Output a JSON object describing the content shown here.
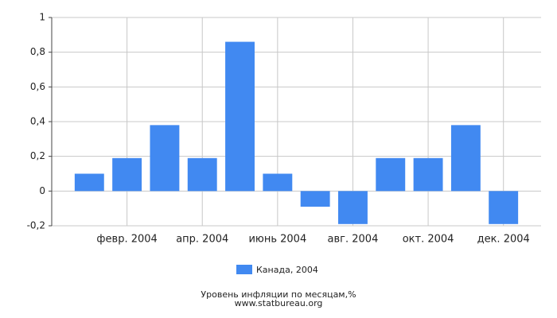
{
  "chart_data": {
    "type": "bar",
    "title": "Уровень инфляции по месяцам,%",
    "source": "www.statbureau.org",
    "categories": [
      null,
      "февр. 2004",
      null,
      "апр. 2004",
      null,
      "июнь 2004",
      null,
      "авг. 2004",
      null,
      "окт. 2004",
      null,
      "дек. 2004"
    ],
    "series": [
      {
        "name": "Канада, 2004",
        "color": "#4189f1",
        "values": [
          0.1,
          0.19,
          0.38,
          0.19,
          0.86,
          0.1,
          -0.09,
          -0.19,
          0.19,
          0.19,
          0.38,
          -0.19
        ]
      }
    ],
    "ylim": [
      -0.2,
      1
    ],
    "yticks": [
      {
        "value": -0.2,
        "label": "-0,2"
      },
      0,
      {
        "value": 0.2,
        "label": "0,2"
      },
      {
        "value": 0.4,
        "label": "0,4"
      },
      {
        "value": 0.6,
        "label": "0,6"
      },
      {
        "value": 0.8,
        "label": "0,8"
      },
      1
    ],
    "grid": true
  }
}
